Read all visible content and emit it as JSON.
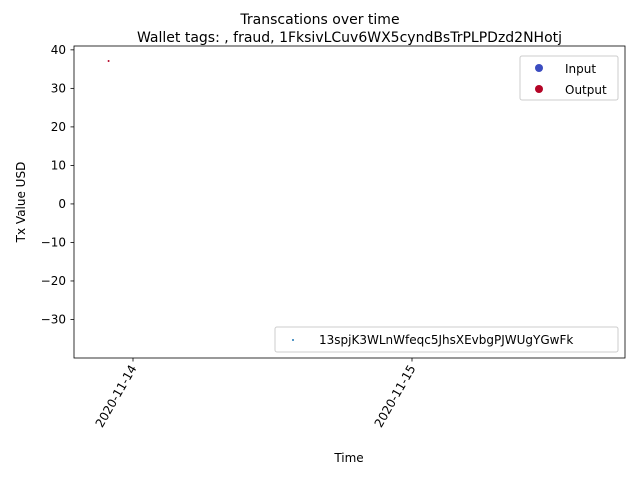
{
  "chart_data": {
    "type": "scatter",
    "suptitle": "Transcations over time",
    "title": "Wallet tags: , fraud, 1FksivLCuv6WX5cyndBsTrPLPDzd2NHotj",
    "xlabel": "Time",
    "ylabel": "Tx Value USD",
    "x_ticks": [
      "2020-11-14",
      "2020-11-15"
    ],
    "y_ticks": [
      40,
      30,
      20,
      10,
      0,
      -10,
      -20,
      -30
    ],
    "ylim": [
      -40,
      41
    ],
    "grid": false,
    "legend_top": {
      "placement": "top-right",
      "entries": [
        {
          "label": "Input",
          "color": "#3b4cc0"
        },
        {
          "label": "Output",
          "color": "#b40426"
        }
      ]
    },
    "legend_bottom": {
      "placement": "bottom-right",
      "entries": [
        {
          "label": "13spjK3WLnWfeqc5JhsXEvbgPJWUgYGwFk",
          "color": "#1f77b4"
        }
      ]
    },
    "series": [
      {
        "name": "Output",
        "color": "#b40426",
        "points": [
          {
            "x": "2020-11-13 21:54",
            "y": 37.1
          }
        ]
      }
    ]
  }
}
